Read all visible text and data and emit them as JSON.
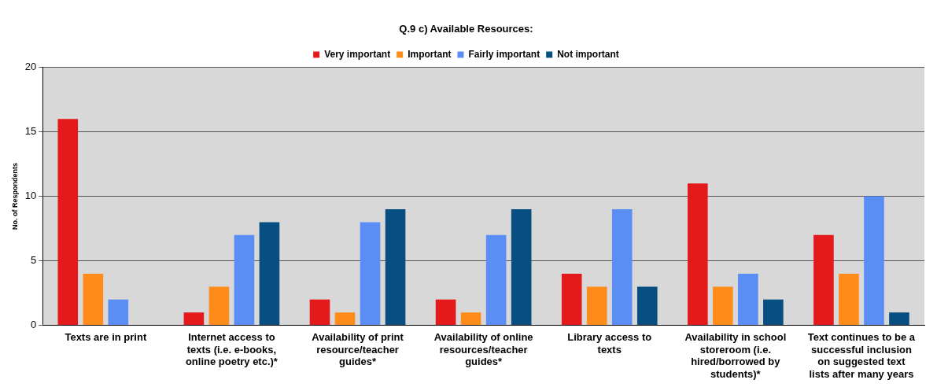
{
  "chart_data": {
    "type": "bar",
    "title": "Q.9 c) Available Resources:",
    "ylabel": "No. of Respondents",
    "categories": [
      "Texts are in print",
      "Internet access to texts (i.e. e-books, online poetry etc.)*",
      "Availability of print resource/teacher guides*",
      "Availability of online resources/teacher guides*",
      "Library access to texts",
      "Availability in school storeroom (i.e. hired/borrowed by students)*",
      "Text continues to be a successful inclusion on suggested text lists after many years"
    ],
    "series": [
      {
        "name": "Very important",
        "color": "#e3191b",
        "values": [
          16,
          1,
          2,
          2,
          4,
          11,
          7
        ]
      },
      {
        "name": "Important",
        "color": "#ff8c1a",
        "values": [
          4,
          3,
          1,
          1,
          3,
          3,
          4
        ]
      },
      {
        "name": "Fairly important",
        "color": "#5a8ef5",
        "values": [
          2,
          7,
          8,
          7,
          9,
          4,
          10
        ]
      },
      {
        "name": "Not important",
        "color": "#064f80",
        "values": [
          0,
          8,
          9,
          9,
          3,
          2,
          1
        ]
      }
    ],
    "ylim": [
      0,
      20
    ],
    "yticks": [
      0,
      5,
      10,
      15,
      20
    ],
    "grid": "y",
    "legend": "top"
  }
}
